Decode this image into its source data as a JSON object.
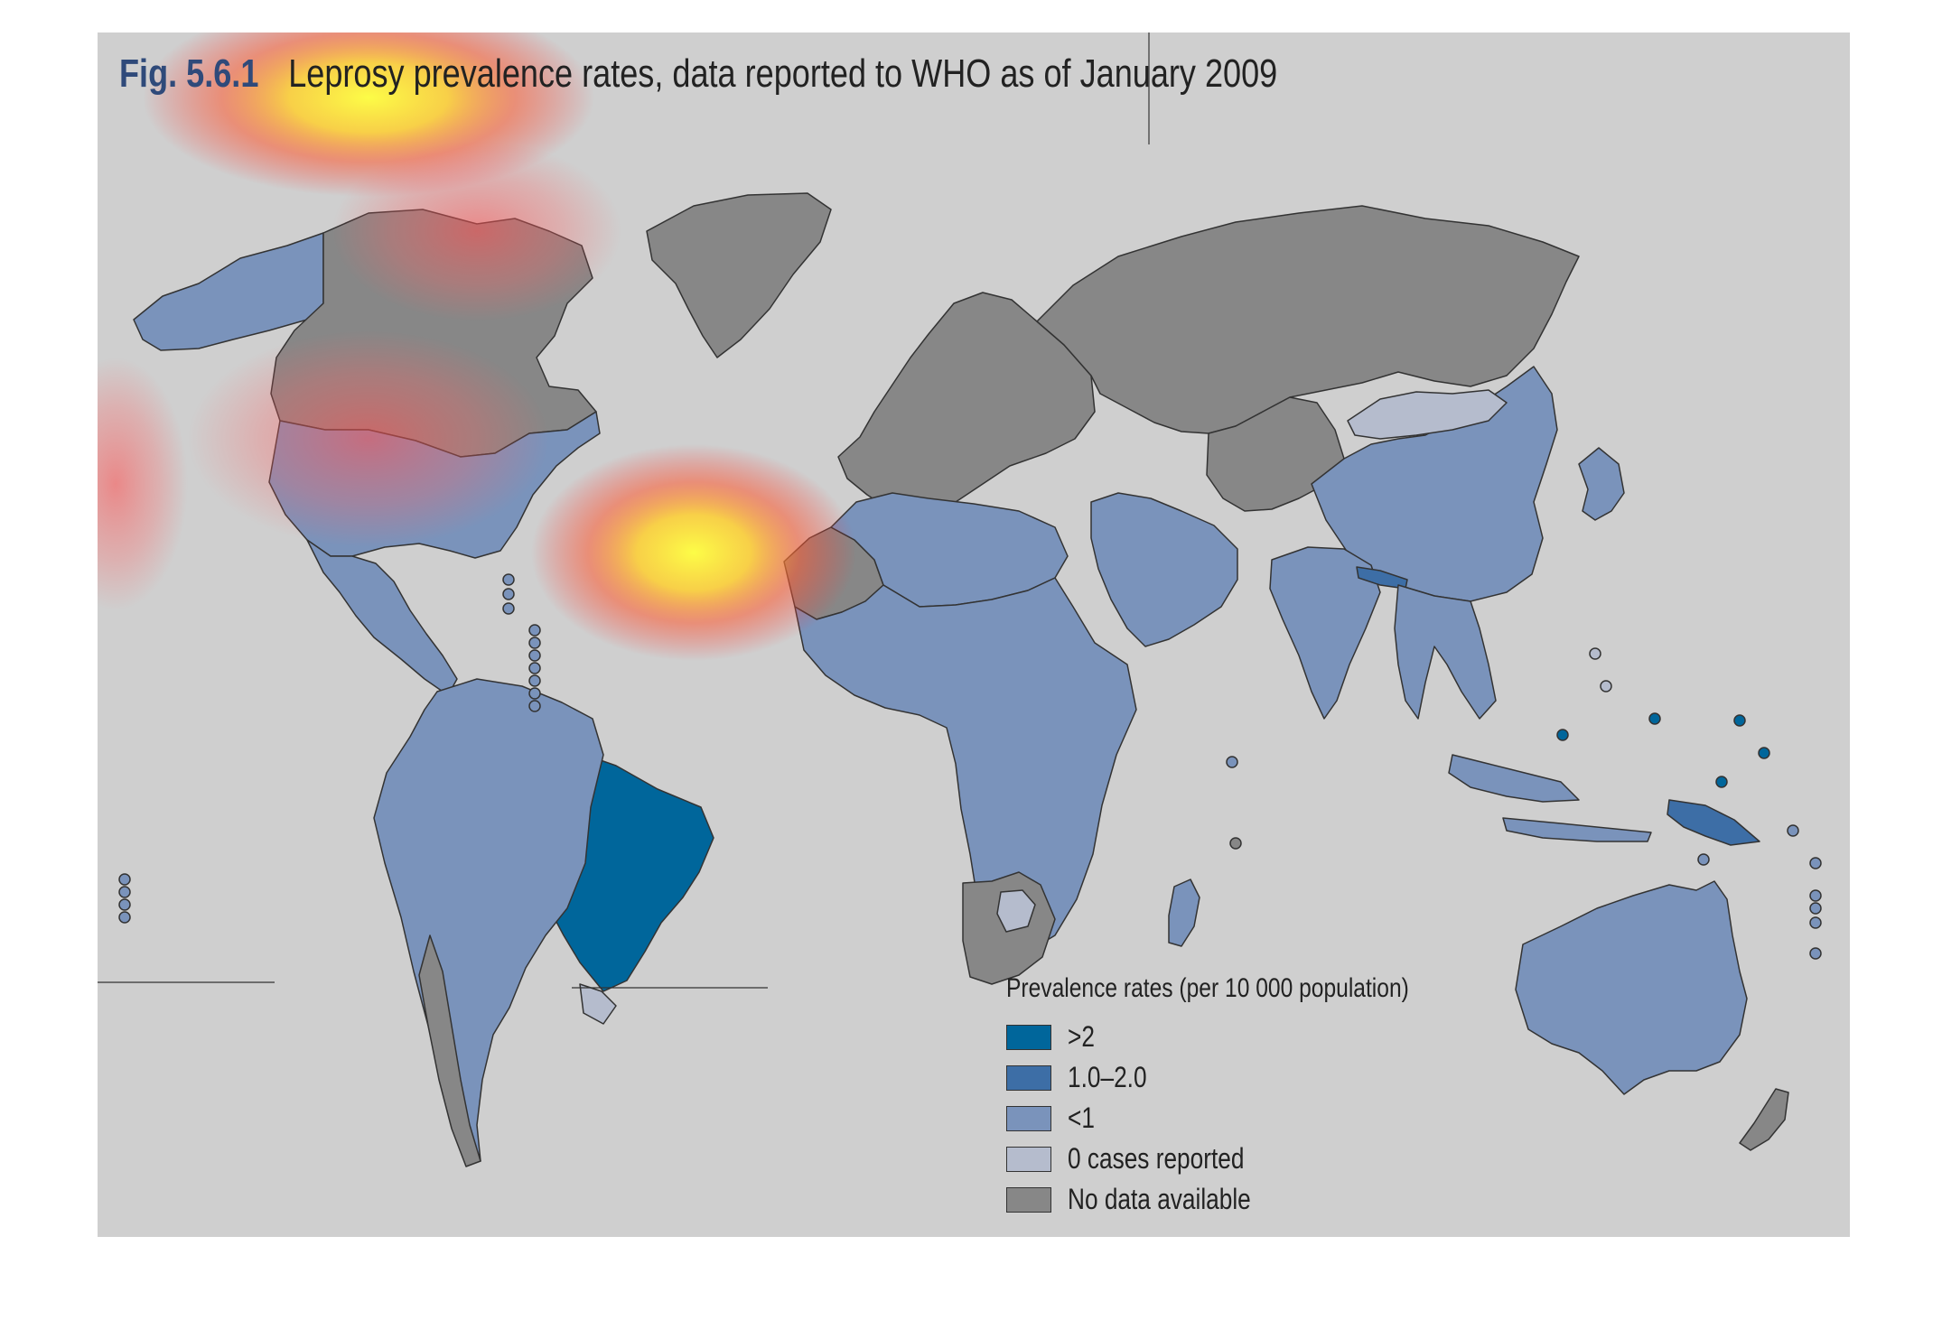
{
  "figure": {
    "number": "Fig. 5.6.1",
    "title": "Leprosy prevalence rates, data reported to WHO as of January 2009"
  },
  "legend": {
    "title": "Prevalence rates (per 10 000 population)",
    "items": [
      {
        "label": ">2",
        "color": "#00669b"
      },
      {
        "label": "1.0–2.0",
        "color": "#3d6ea6"
      },
      {
        "label": "<1",
        "color": "#7a93bb"
      },
      {
        "label": "0 cases reported",
        "color": "#b5bccd"
      },
      {
        "label": "No data available",
        "color": "#878787"
      }
    ]
  },
  "colors": {
    "background": "#cfcfcf",
    "border": "#333333",
    "title_number": "#2f4a7a"
  },
  "map_regions": [
    {
      "name": "Alaska",
      "category": "<1"
    },
    {
      "name": "Canada",
      "category": "No data available"
    },
    {
      "name": "Greenland",
      "category": "No data available"
    },
    {
      "name": "United States",
      "category": "<1"
    },
    {
      "name": "Mexico and Central America",
      "category": "<1"
    },
    {
      "name": "Brazil",
      "category": ">2"
    },
    {
      "name": "South America",
      "category": "<1"
    },
    {
      "name": "Uruguay",
      "category": "0 cases reported"
    },
    {
      "name": "Chile",
      "category": "No data available"
    },
    {
      "name": "Europe",
      "category": "No data available"
    },
    {
      "name": "Russia",
      "category": "No data available"
    },
    {
      "name": "Western Sahara",
      "category": "No data available"
    },
    {
      "name": "North Africa",
      "category": "<1"
    },
    {
      "name": "Sub-Saharan Africa",
      "category": "<1"
    },
    {
      "name": "Namibia and South Africa",
      "category": "No data available"
    },
    {
      "name": "Botswana",
      "category": "0 cases reported"
    },
    {
      "name": "Middle East",
      "category": "<1"
    },
    {
      "name": "Central Asia",
      "category": "No data available"
    },
    {
      "name": "China",
      "category": "<1"
    },
    {
      "name": "Mongolia",
      "category": "0 cases reported"
    },
    {
      "name": "India",
      "category": "<1"
    },
    {
      "name": "Nepal",
      "category": "1.0–2.0"
    },
    {
      "name": "Southeast Asia",
      "category": "<1"
    },
    {
      "name": "Indonesia",
      "category": "<1"
    },
    {
      "name": "Papua New Guinea",
      "category": "1.0–2.0"
    },
    {
      "name": "Japan",
      "category": "<1"
    },
    {
      "name": "Madagascar",
      "category": "<1"
    },
    {
      "name": "Australia",
      "category": "<1"
    },
    {
      "name": "New Zealand",
      "category": "No data available"
    },
    {
      "name": "Pacific islands (Micronesia)",
      "category": ">2"
    }
  ]
}
